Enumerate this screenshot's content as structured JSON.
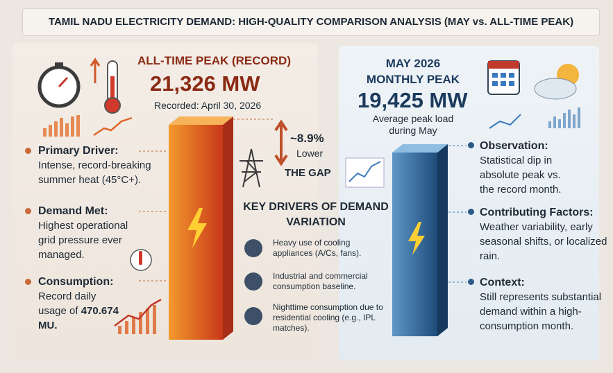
{
  "header": {
    "title": "TAMIL NADU ELECTRICITY DEMAND: HIGH-QUALITY COMPARISON ANALYSIS (MAY vs. ALL-TIME PEAK)"
  },
  "record": {
    "heading": "ALL-TIME PEAK (RECORD)",
    "value": "21,326 MW",
    "subtitle": "Recorded: April 30, 2026",
    "items": [
      {
        "label": "Primary Driver:",
        "text": "Intense, record-breaking summer heat (45°C+)."
      },
      {
        "label": "Demand Met:",
        "text": "Highest operational grid pressure ever managed."
      },
      {
        "label": "Consumption:",
        "text": "Record daily usage of",
        "emphasis": "470.674 MU."
      }
    ]
  },
  "gap": {
    "percent": "~8.9%",
    "direction": "Lower",
    "label": "THE GAP"
  },
  "drivers": {
    "title": "KEY DRIVERS OF DEMAND VARIATION",
    "items": [
      "Heavy use of cooling appliances (A/Cs, fans).",
      "Industrial and commercial consumption baseline.",
      "Nighttime consumption due to residential cooling (e.g., IPL matches)."
    ]
  },
  "may": {
    "heading": "MAY 2026 MONTHLY PEAK",
    "value": "19,425 MW",
    "subtitle": "Average peak load during May",
    "items": [
      {
        "label": "Observation:",
        "text": "Statistical dip in absolute peak vs. the record month."
      },
      {
        "label": "Contributing Factors:",
        "text": "Weather variability, early seasonal shifts, or localized rain."
      },
      {
        "label": "Context:",
        "text": "Still represents substantial demand within a high-consumption month."
      }
    ]
  }
}
